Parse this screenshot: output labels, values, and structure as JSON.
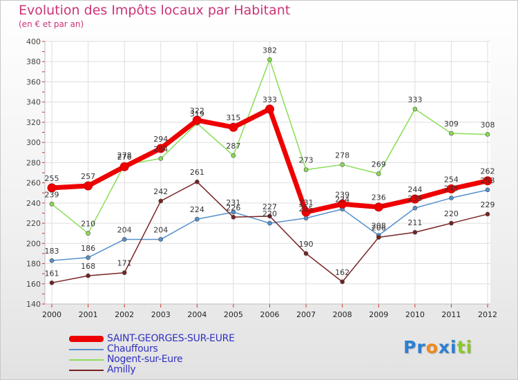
{
  "chart_data": {
    "type": "line",
    "title": "Evolution des Impôts locaux par Habitant",
    "subtitle": "(en € et par an)",
    "xlabel": "",
    "ylabel": "",
    "x": [
      "2000",
      "2001",
      "2002",
      "2003",
      "2004",
      "2005",
      "2006",
      "2007",
      "2008",
      "2009",
      "2010",
      "2011",
      "2012"
    ],
    "ylim": [
      140,
      400
    ],
    "yticks": [
      "140",
      "160",
      "180",
      "200",
      "220",
      "240",
      "260",
      "280",
      "300",
      "320",
      "340",
      "360",
      "380",
      "400"
    ],
    "grid": true,
    "series": [
      {
        "name": "SAINT-GEORGES-SUR-EURE",
        "color": "#ee0000",
        "values": [
          255,
          257,
          276,
          294,
          322,
          315,
          333,
          231,
          239,
          236,
          244,
          254,
          262
        ]
      },
      {
        "name": "Chauffours",
        "color": "#5590cc",
        "values": [
          183,
          186,
          204,
          204,
          224,
          231,
          220,
          225,
          234,
          208,
          235,
          245,
          253
        ]
      },
      {
        "name": "Nogent-sur-Eure",
        "color": "#88dd55",
        "values": [
          239,
          210,
          278,
          284,
          319,
          287,
          382,
          273,
          278,
          269,
          333,
          309,
          308
        ]
      },
      {
        "name": "Amilly",
        "color": "#772222",
        "values": [
          161,
          168,
          171,
          242,
          261,
          226,
          227,
          190,
          162,
          206,
          211,
          220,
          229
        ]
      }
    ]
  },
  "logo": {
    "text": "Proxiti",
    "letters": [
      "P",
      "r",
      "o",
      "x",
      "i",
      "t",
      "i"
    ],
    "colors": [
      "#2a7fd4",
      "#2a7fd4",
      "#f08a1c",
      "#2a7fd4",
      "#2a7fd4",
      "#8ac926",
      "#8ac926"
    ]
  }
}
